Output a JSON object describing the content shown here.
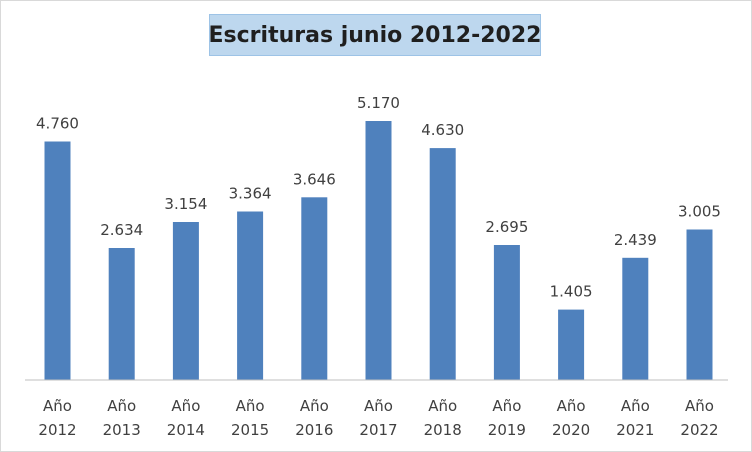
{
  "chart_data": {
    "type": "bar",
    "title": "Escrituras junio 2012-2022",
    "xlabel": "",
    "ylabel": "",
    "categories": [
      [
        "Año",
        "2012"
      ],
      [
        "Año",
        "2013"
      ],
      [
        "Año",
        "2014"
      ],
      [
        "Año",
        "2015"
      ],
      [
        "Año",
        "2016"
      ],
      [
        "Año",
        "2017"
      ],
      [
        "Año",
        "2018"
      ],
      [
        "Año",
        "2019"
      ],
      [
        "Año",
        "2020"
      ],
      [
        "Año",
        "2021"
      ],
      [
        "Año",
        "2022"
      ]
    ],
    "values": [
      4760,
      2634,
      3154,
      3364,
      3646,
      5170,
      4630,
      2695,
      1405,
      2439,
      3005
    ],
    "value_labels": [
      "4.760",
      "2.634",
      "3.154",
      "3.364",
      "3.646",
      "5.170",
      "4.630",
      "2.695",
      "1.405",
      "2.439",
      "3.005"
    ],
    "ylim": [
      0,
      5170
    ],
    "grid": false,
    "legend": "none",
    "bar_color": "#4f81bd",
    "title_background": "#bdd7ee"
  }
}
